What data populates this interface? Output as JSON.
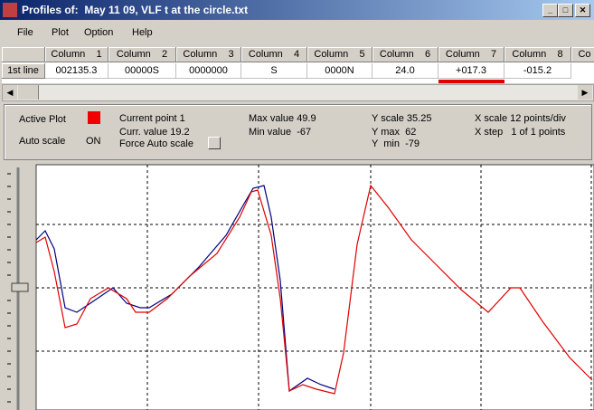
{
  "window": {
    "title": "Profiles of:  May 11 09, VLF t at the circle.txt"
  },
  "menu": [
    "File",
    "Plot",
    "Option",
    "Help"
  ],
  "table": {
    "headers": [
      "Column    1",
      "Column    2",
      "Column    3",
      "Column    4",
      "Column    5",
      "Column    6",
      "Column    7",
      "Column    8",
      "Co"
    ],
    "rows": [
      {
        "label": "1st line",
        "cells": [
          "002135.3",
          "00000S",
          "0000000",
          "S",
          "0000N",
          "24.0",
          "+017.3",
          "-015.2"
        ]
      }
    ]
  },
  "info": {
    "active_plot": "Active Plot",
    "auto_scale": "Auto scale",
    "auto_scale_state": "ON",
    "current_point": "Current point 1",
    "current_value": "Curr. value 19.2",
    "force_auto_scale": "Force Auto scale",
    "max_value": "Max value 49.9",
    "min_value": "Min value  -67",
    "y_scale": "Y scale 35.25",
    "y_max": "Y max  62",
    "y_min": "Y  min  -79",
    "x_scale": "X scale 12 points/div",
    "x_step": "X step   1 of 1 points"
  }
}
